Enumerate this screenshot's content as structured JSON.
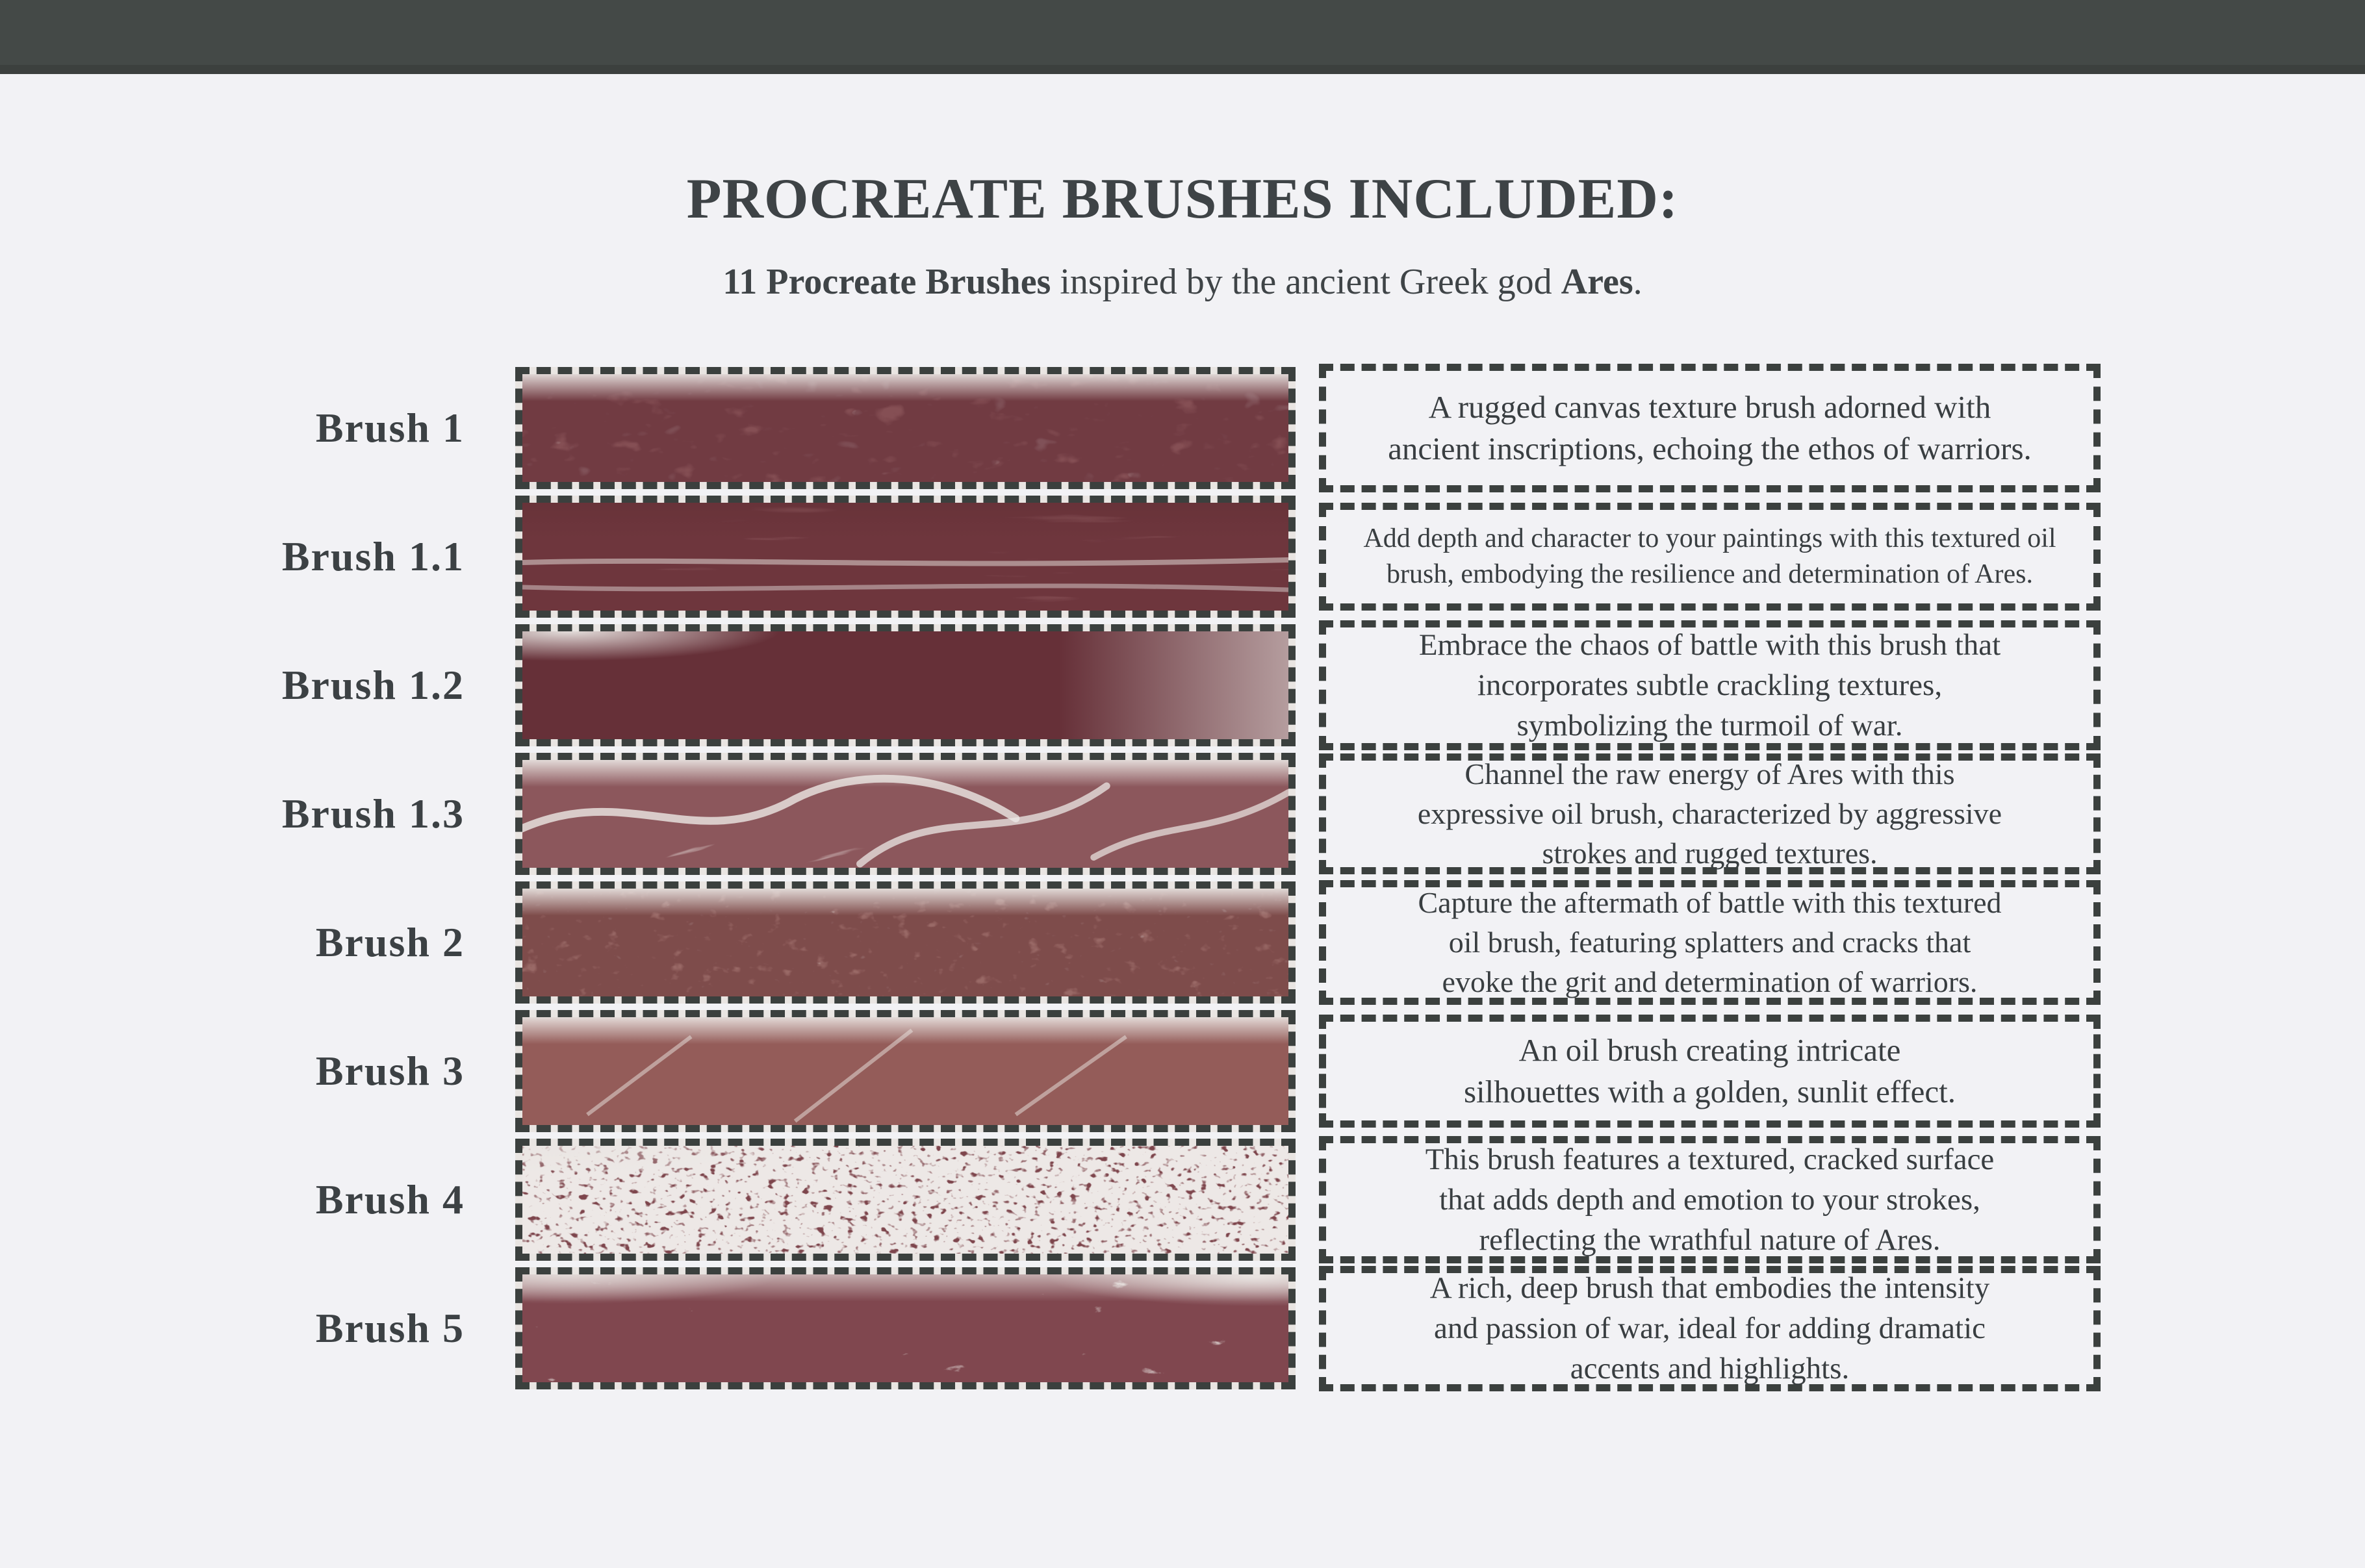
{
  "header": {
    "title": "PROCREATE BRUSHES INCLUDED:",
    "subtitle_bold": "11 Procreate Brushes",
    "subtitle_middle": " inspired by the ancient Greek god ",
    "subtitle_bold2": "Ares",
    "subtitle_period": "."
  },
  "colors": {
    "topbar": "#444947",
    "background": "#f2f2f5",
    "dashed_border": "#3b403e",
    "text": "#3e4346",
    "brush_maroon": "#8a5458",
    "brush_maroon_dark": "#6f3a3f",
    "canvas_offwhite": "#e9e5e2"
  },
  "brushes": [
    {
      "label": "Brush 1",
      "description_lines": [
        "A rugged canvas texture brush adorned with",
        "ancient inscriptions, echoing the ethos of warriors."
      ]
    },
    {
      "label": "Brush 1.1",
      "description_lines": [
        "Add depth and character to your paintings with this textured oil",
        "brush, embodying the resilience and determination of Ares."
      ]
    },
    {
      "label": "Brush 1.2",
      "description_lines": [
        "Embrace the chaos of battle with this brush that",
        "incorporates subtle crackling textures,",
        "symbolizing the turmoil of war."
      ]
    },
    {
      "label": "Brush 1.3",
      "description_lines": [
        "Channel the raw energy of Ares with this",
        "expressive oil brush, characterized by aggressive",
        "strokes and rugged textures."
      ]
    },
    {
      "label": "Brush 2",
      "description_lines": [
        "Capture the aftermath of battle with this textured",
        "oil brush, featuring splatters and cracks that",
        "evoke the grit and determination of warriors."
      ]
    },
    {
      "label": "Brush 3",
      "description_lines": [
        "An oil brush creating intricate",
        "silhouettes with a golden, sunlit effect."
      ]
    },
    {
      "label": "Brush 4",
      "description_lines": [
        "This brush features a textured, cracked surface",
        "that adds depth and emotion to your strokes,",
        "reflecting the wrathful nature of Ares."
      ]
    },
    {
      "label": "Brush 5",
      "description_lines": [
        "A rich, deep brush that embodies the intensity",
        "and passion of war, ideal for adding dramatic",
        "accents and highlights."
      ]
    }
  ]
}
